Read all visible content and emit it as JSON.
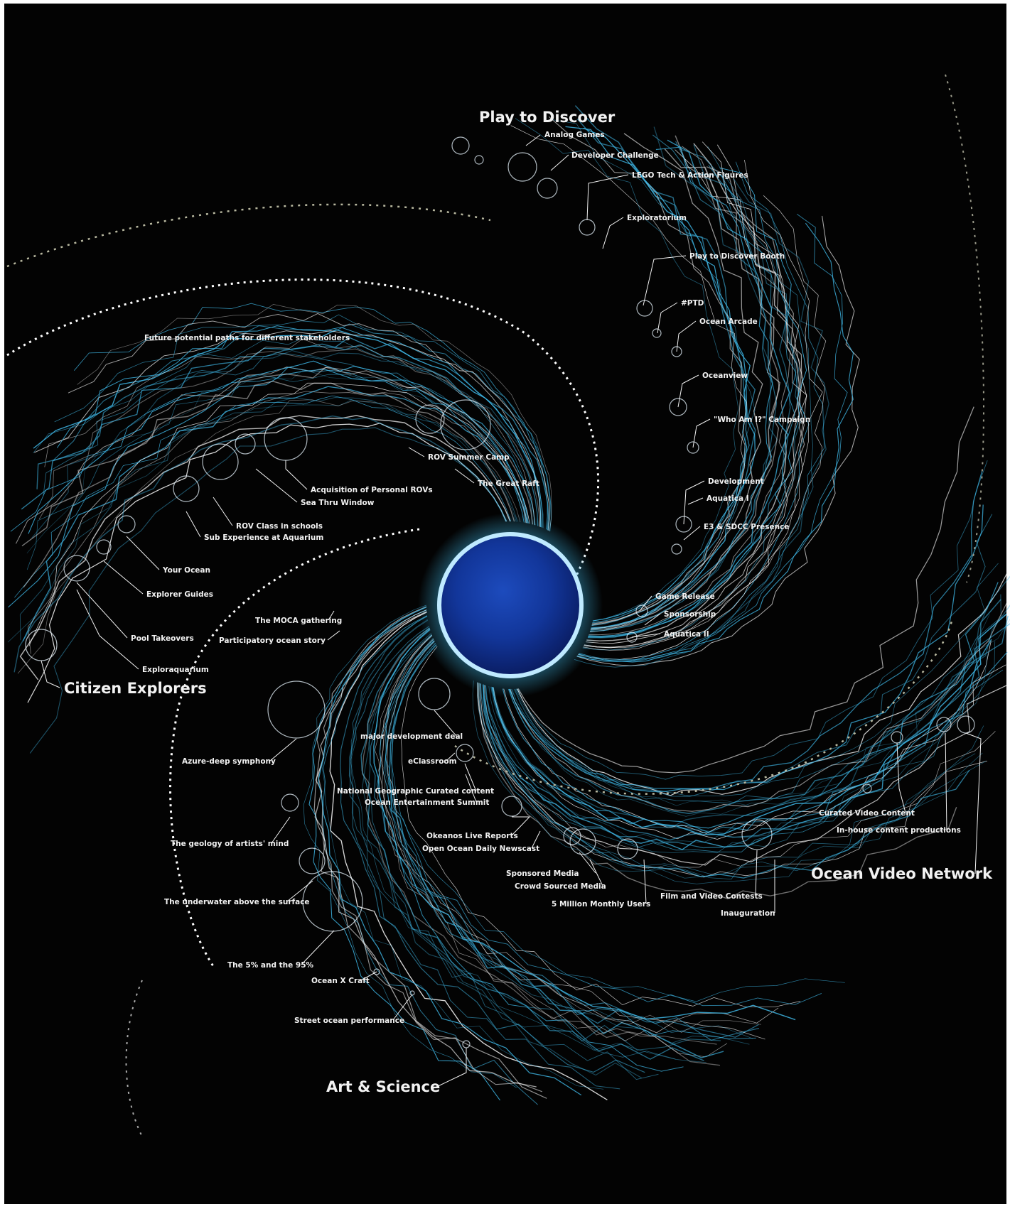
{
  "colors": {
    "background": "#030303",
    "strand_blue": "#3fb7e6",
    "strand_white": "#ffffff",
    "core_blue": "#12369a",
    "future_path": "#b8b8a0"
  },
  "categories": {
    "play_to_discover": "Play to Discover",
    "citizen_explorers": "Citizen Explorers",
    "ocean_video_network": "Ocean Video Network",
    "art_and_science": "Art & Science"
  },
  "future_paths_note": "Future potential paths for different stakeholders",
  "labels": {
    "play": [
      "Analog Games",
      "Developer Challenge",
      "LEGO Tech & Action Figures",
      "Exploratorium",
      "Play to Discover Booth",
      "#PTD",
      "Ocean Arcade",
      "Oceanview",
      "\"Who Am I?\" Campaign",
      "Development",
      "Aquatica I",
      "E3 & SDCC Presence",
      "Game Release",
      "Sponsorship",
      "Aquatica II"
    ],
    "citizen": [
      "ROV Summer Camp",
      "The Great Raft",
      "Acquisition of Personal ROVs",
      "Sea Thru Window",
      "ROV Class in schools",
      "Sub Experience at Aquarium",
      "Your Ocean",
      "Explorer Guides",
      "Pool Takeovers",
      "Exploraquarium"
    ],
    "art": [
      "The MOCA gathering",
      "Participatory ocean story",
      "Azure-deep symphony",
      "The geology of artists' mind",
      "The underwater above the surface",
      "The 5% and the 95%",
      "Ocean X Craft",
      "Street ocean performance"
    ],
    "video": [
      "major development deal",
      "eClassroom",
      "National Geographic Curated content",
      "Ocean Entertainment Summit",
      "Okeanos Live Reports",
      "Open Ocean Daily Newscast",
      "Sponsored Media",
      "Crowd Sourced Media",
      "5 Million Monthly Users",
      "Film and Video Contests",
      "Inauguration",
      "Curated Video Content",
      "In-house content productions"
    ]
  }
}
